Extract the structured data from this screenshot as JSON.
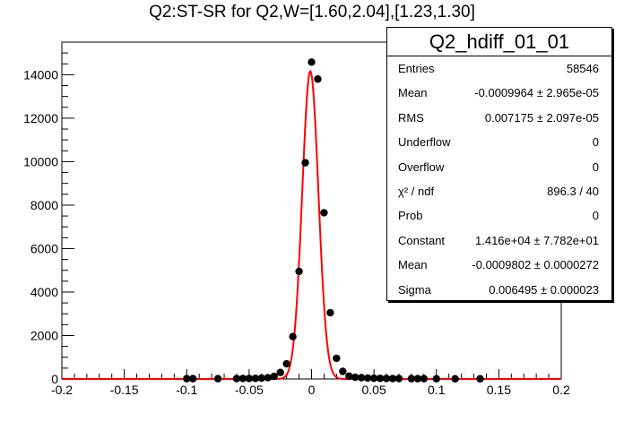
{
  "title": "Q2:ST-SR for Q2,W=[1.60,2.04],[1.23,1.30]",
  "stats": {
    "name": "Q2_hdiff_01_01",
    "rows": [
      {
        "label": "Entries",
        "value": "58546"
      },
      {
        "label": "Mean",
        "value": "-0.0009964 ± 2.965e-05"
      },
      {
        "label": "RMS",
        "value": "0.007175 ± 2.097e-05"
      },
      {
        "label": "Underflow",
        "value": "0"
      },
      {
        "label": "Overflow",
        "value": "0"
      },
      {
        "label": "χ² / ndf",
        "value": "896.3 / 40"
      },
      {
        "label": "Prob",
        "value": "0"
      },
      {
        "label": "Constant",
        "value": "1.416e+04 ± 7.782e+01"
      },
      {
        "label": "Mean",
        "value": "-0.0009802 ± 0.0000272"
      },
      {
        "label": "Sigma",
        "value": "0.006495 ± 0.000023"
      }
    ]
  },
  "chart_data": {
    "type": "scatter",
    "title": "Q2:ST-SR for Q2,W=[1.60,2.04],[1.23,1.30]",
    "xlim": [
      -0.2,
      0.2
    ],
    "ylim": [
      0,
      15500
    ],
    "xticks": [
      "-0.2",
      "-0.15",
      "-0.1",
      "-0.05",
      "0",
      "0.05",
      "0.1",
      "0.15",
      "0.2"
    ],
    "yticks": [
      "0",
      "2000",
      "4000",
      "6000",
      "8000",
      "10000",
      "12000",
      "14000"
    ],
    "ytick_values": [
      0,
      2000,
      4000,
      6000,
      8000,
      10000,
      12000,
      14000
    ],
    "xtick_values": [
      -0.2,
      -0.15,
      -0.1,
      -0.05,
      0,
      0.05,
      0.1,
      0.15,
      0.2
    ],
    "marker_color": "#000000",
    "fit_color": "#ff0000",
    "series": [
      {
        "x": [
          -0.1,
          -0.095,
          -0.075,
          -0.06,
          -0.055,
          -0.05,
          -0.045,
          -0.04,
          -0.035,
          -0.03,
          -0.025,
          -0.02,
          -0.015,
          -0.01,
          -0.005,
          0,
          0.005,
          0.01,
          0.015,
          0.02,
          0.025,
          0.03,
          0.035,
          0.04,
          0.045,
          0.05,
          0.055,
          0.06,
          0.065,
          0.07,
          0.08,
          0.085,
          0.09,
          0.1,
          0.115,
          0.135
        ],
        "y": [
          15,
          15,
          15,
          20,
          25,
          25,
          30,
          40,
          60,
          120,
          300,
          700,
          1950,
          4950,
          9950,
          14580,
          13800,
          7650,
          3050,
          950,
          350,
          130,
          80,
          60,
          45,
          35,
          30,
          25,
          20,
          20,
          15,
          15,
          15,
          12,
          10,
          10
        ]
      }
    ],
    "fit": {
      "function": "gaus",
      "constant": 14160,
      "mean": -0.0009802,
      "sigma": 0.006495
    }
  }
}
